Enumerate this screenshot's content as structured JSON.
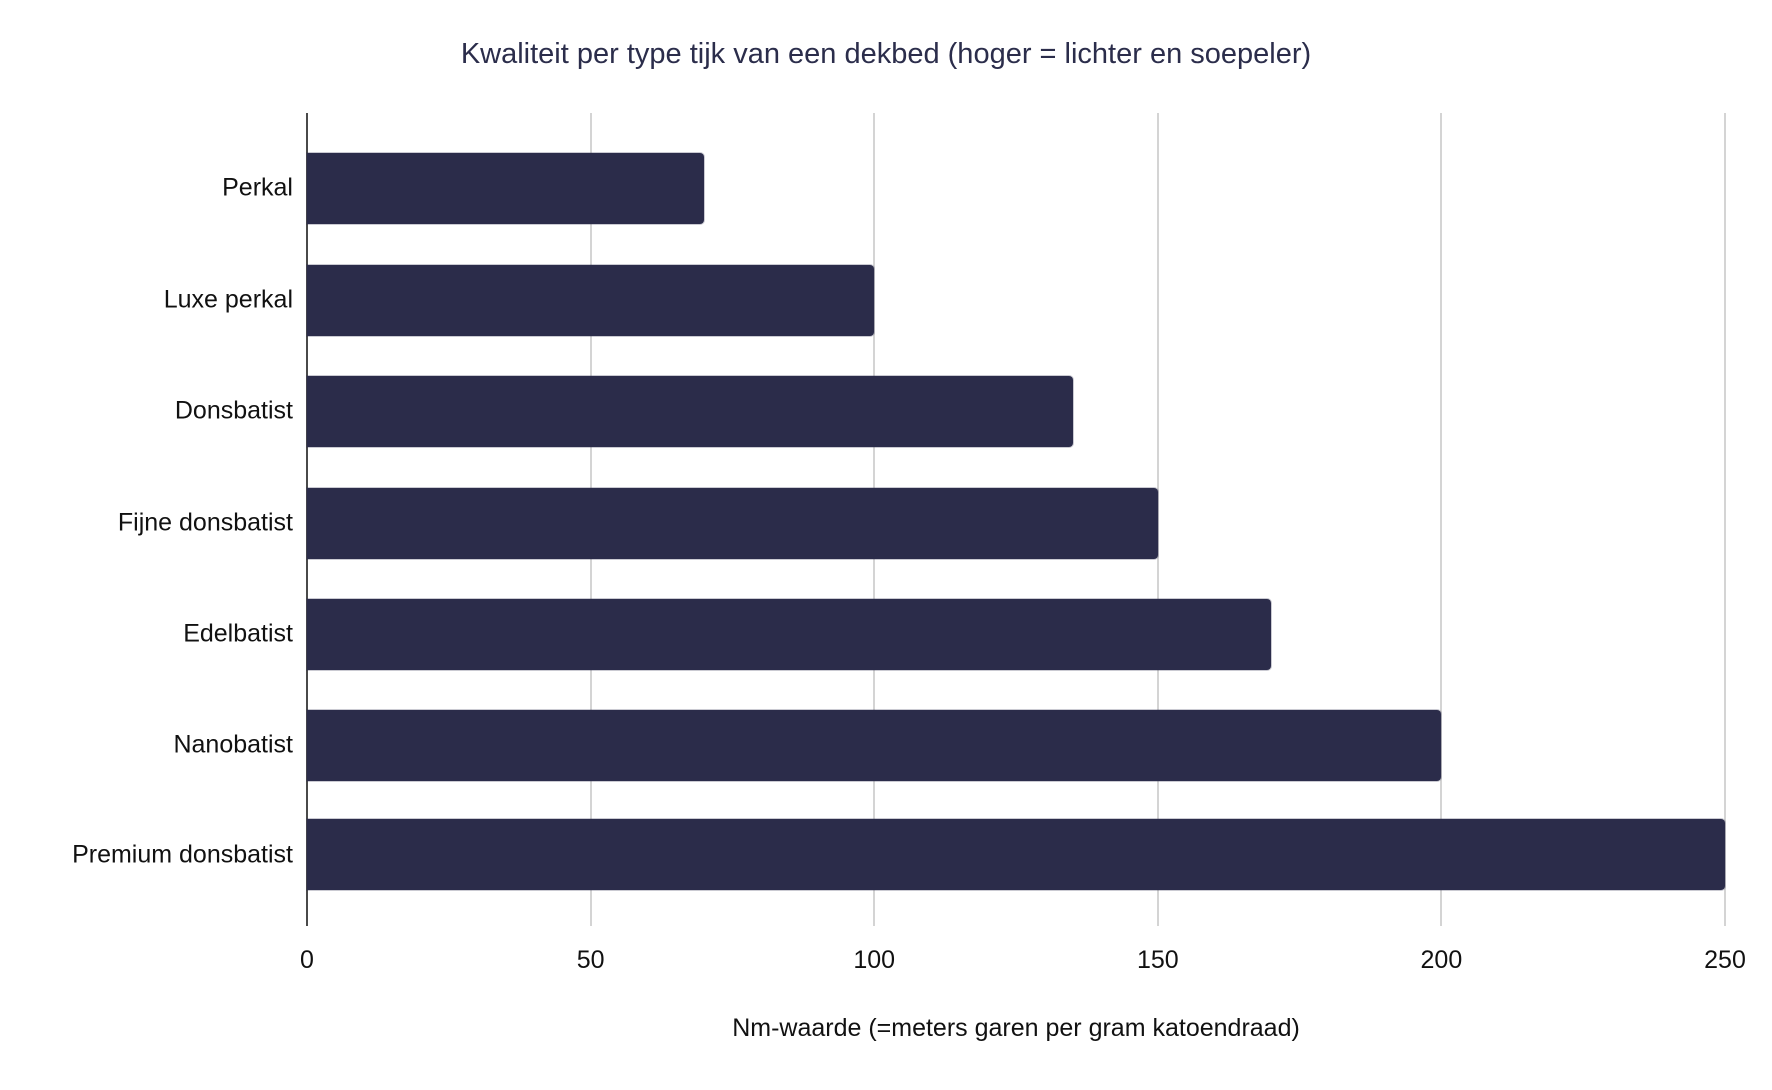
{
  "chart_data": {
    "type": "bar",
    "orientation": "horizontal",
    "title": "Kwaliteit per type tijk van een dekbed (hoger = lichter en soepeler)",
    "xlabel": "Nm-waarde (=meters garen per gram katoendraad)",
    "ylabel": "",
    "categories": [
      "Perkal",
      "Luxe perkal",
      "Donsbatist",
      "Fijne donsbatist",
      "Edelbatist",
      "Nanobatist",
      "Premium donsbatist"
    ],
    "values": [
      70,
      100,
      135,
      150,
      170,
      200,
      250
    ],
    "xlim": [
      0,
      250
    ],
    "xticks": [
      "0",
      "50",
      "100",
      "150",
      "200",
      "250"
    ],
    "grid": "vertical",
    "legend": "none",
    "colors": {
      "bar": "#2b2c4a",
      "title": "#2b2d4b",
      "grid": "#d4d4d4",
      "axis": "#4a4a4a"
    }
  }
}
